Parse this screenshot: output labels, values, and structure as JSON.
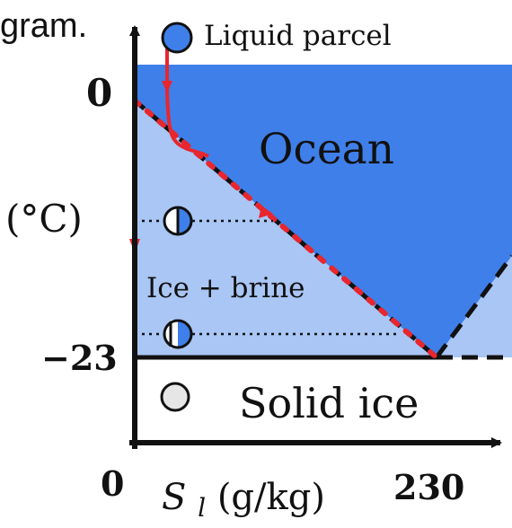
{
  "header": {
    "caption_fragment": "gram."
  },
  "legend": {
    "liquid_parcel_label": "Liquid parcel"
  },
  "regions": {
    "ocean_label": "Ocean",
    "ice_brine_label": "Ice + brine",
    "solid_ice_label": "Solid ice"
  },
  "axes": {
    "y_label": "(°C)",
    "y_tick_zero": "0",
    "y_tick_minus23": "−23",
    "x_tick_zero": "0",
    "x_tick_230": "230",
    "x_label_symbol": "S",
    "x_label_subscript": "l",
    "x_label_units": " (g/kg)"
  },
  "colors": {
    "ocean": "#3f7fe9",
    "brine": "#a9c6f5",
    "path": "#e8262e",
    "parcel_fill": "#3f7fe9",
    "solid_parcel_fill": "#e6e6e6"
  }
}
